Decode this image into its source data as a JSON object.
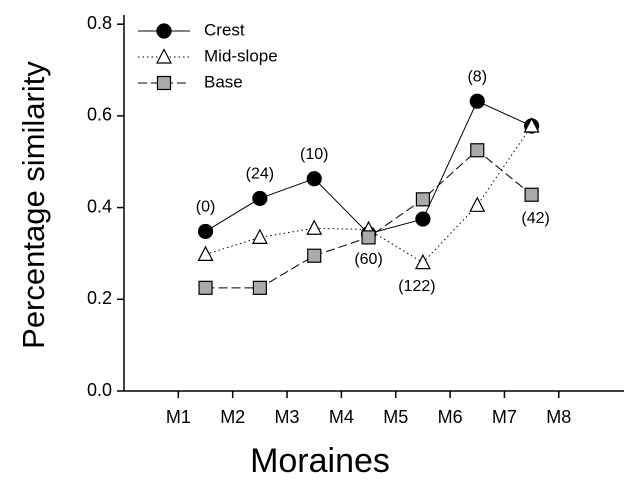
{
  "chart_data": {
    "type": "line",
    "xlabel": "Moraines",
    "ylabel": "Percentage similarity",
    "x": [
      1.5,
      2.5,
      3.5,
      4.5,
      5.5,
      6.5,
      7.5
    ],
    "xlim": [
      0,
      9.2
    ],
    "xticks": [
      {
        "value": 1,
        "label": "M1"
      },
      {
        "value": 2,
        "label": "M2"
      },
      {
        "value": 3,
        "label": "M3"
      },
      {
        "value": 4,
        "label": "M4"
      },
      {
        "value": 5,
        "label": "M5"
      },
      {
        "value": 6,
        "label": "M6"
      },
      {
        "value": 7,
        "label": "M7"
      },
      {
        "value": 8,
        "label": "M8"
      }
    ],
    "ylim": [
      0,
      0.82
    ],
    "yticks": [
      {
        "value": 0,
        "label": "0.0"
      },
      0.2,
      0.4,
      0.6,
      0.8
    ],
    "legend": "upper left",
    "series": [
      {
        "name": "Crest",
        "color": "#000000",
        "marker": "circle",
        "line": "solid",
        "values": [
          0.348,
          0.42,
          0.463,
          0.343,
          0.375,
          0.632,
          0.578
        ]
      },
      {
        "name": "Mid-slope",
        "color": "#ffffff",
        "marker": "triangle",
        "line": "dotted",
        "values": [
          0.298,
          0.335,
          0.355,
          0.352,
          0.28,
          0.405,
          0.578
        ]
      },
      {
        "name": "Base",
        "color": "#aaaaaa",
        "marker": "square",
        "line": "dashed",
        "values": [
          0.225,
          0.225,
          0.295,
          0.335,
          0.418,
          0.525,
          0.428
        ]
      }
    ],
    "annotations": [
      "(0)",
      "(24)",
      "(10)",
      "(60)",
      "(122)",
      "(8)",
      "(42)"
    ]
  }
}
